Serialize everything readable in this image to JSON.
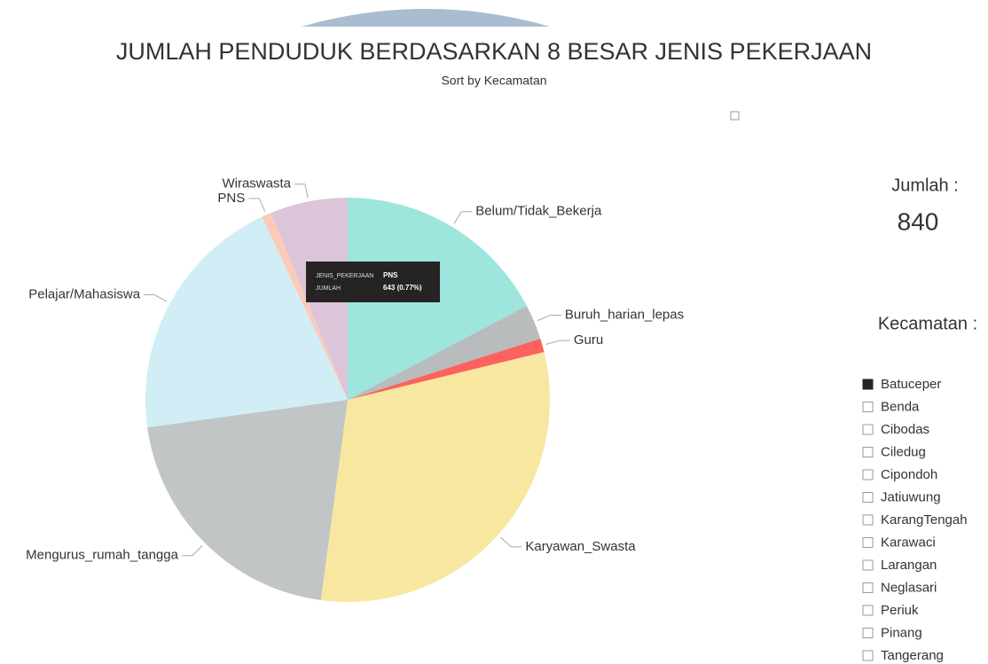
{
  "chart_data": {
    "type": "pie",
    "title": "JUMLAH PENDUDUK BERDASARKAN 8 BESAR JENIS PEKERJAAN",
    "subtitle": "Sort by Kecamatan",
    "categories": [
      "Belum/Tidak_Bekerja",
      "Buruh_harian_lepas",
      "Guru",
      "Karyawan_Swasta",
      "Mengurus_rumah_tangga",
      "Pelajar/Mahasiswa",
      "PNS",
      "Wiraswasta"
    ],
    "values": [
      14447,
      2338,
      919,
      25803,
      17286,
      16868,
      643,
      5177
    ],
    "colors": [
      "#9de5dd",
      "#b8bcbc",
      "#fd625e",
      "#f8e7a0",
      "#c1c5c6",
      "#d1edf5",
      "#fbcbb8",
      "#dcc4d9"
    ]
  },
  "tooltip": {
    "field_label": "JENIS_PEKERJAAN",
    "field_value": "PNS",
    "measure_label": "JUMLAH",
    "measure_value": "643 (0.77%)"
  },
  "card": {
    "label": "Jumlah :",
    "value": "840"
  },
  "slicer": {
    "title": "Kecamatan :",
    "items": [
      "Batuceper",
      "Benda",
      "Cibodas",
      "Ciledug",
      "Cipondoh",
      "Jatiuwung",
      "KarangTengah",
      "Karawaci",
      "Larangan",
      "Neglasari",
      "Periuk",
      "Pinang",
      "Tangerang"
    ],
    "selected": "Batuceper"
  }
}
